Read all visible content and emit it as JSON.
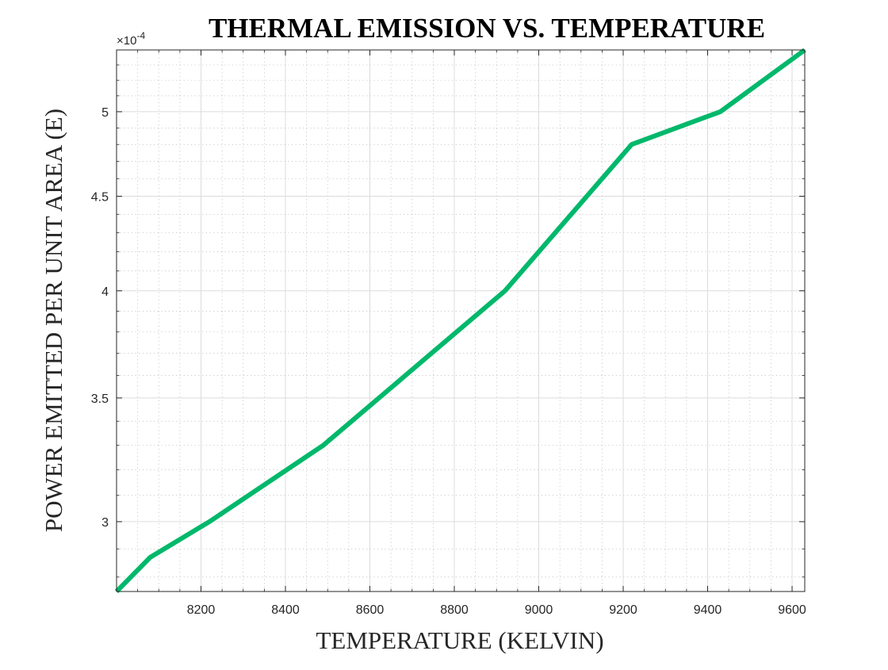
{
  "chart_data": {
    "type": "line",
    "title": "THERMAL EMISSION VS. TEMPERATURE",
    "xlabel": "TEMPERATURE (KELVIN)",
    "ylabel": "POWER EMITTED PER UNIT AREA (E)",
    "y_exponent_base": "×10",
    "y_exponent_power": "-4",
    "xscale": "linear",
    "yscale": "log",
    "xlim": [
      8000,
      9630
    ],
    "ylim": [
      2.75,
      5.4
    ],
    "xticks": [
      8200,
      8400,
      8600,
      8800,
      9000,
      9200,
      9400,
      9600
    ],
    "xtick_labels": [
      "8200",
      "8400",
      "8600",
      "8800",
      "9000",
      "9200",
      "9400",
      "9600"
    ],
    "yticks": [
      3,
      3.5,
      4,
      4.5,
      5
    ],
    "ytick_labels": [
      "3",
      "3.5",
      "4",
      "4.5",
      "5"
    ],
    "grid": true,
    "minor_grid": true,
    "box": true,
    "series": [
      {
        "color": "#00b86b",
        "x": [
          8000,
          8080,
          8220,
          8490,
          8920,
          9220,
          9430,
          9630
        ],
        "y": [
          2.75,
          2.87,
          3.0,
          3.3,
          4.0,
          4.8,
          5.0,
          5.4
        ]
      }
    ]
  }
}
